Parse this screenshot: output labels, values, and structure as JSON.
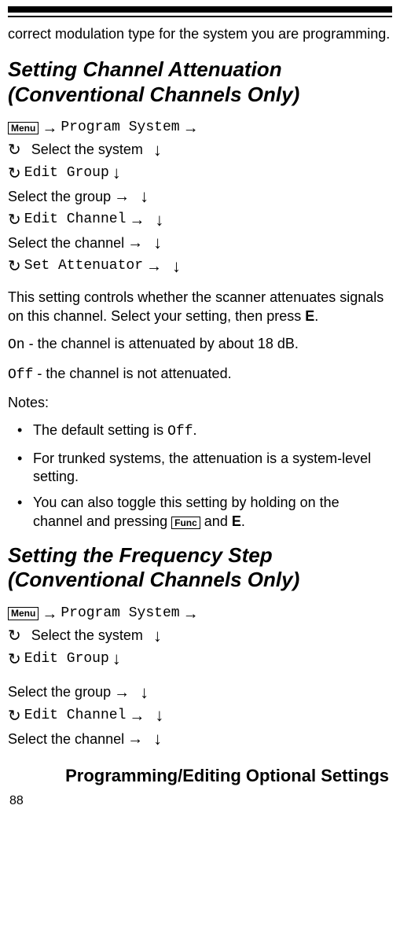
{
  "intro": "correct modulation type for the system you are programming.",
  "section1": {
    "heading": "Setting Channel Attenuation (Conventional Channels Only)",
    "nav": {
      "menu_label": "Menu",
      "program_system": "Program System",
      "select_system": "Select the system",
      "edit_group": "Edit Group",
      "select_group": "Select the group",
      "edit_channel": "Edit Channel",
      "select_channel": "Select the channel",
      "set_attenuator": "Set Attenuator"
    },
    "desc_pre": "This setting controls whether the scanner attenuates signals on this channel. Select your setting, then press ",
    "desc_bold": "E",
    "desc_post": ".",
    "on_label": "On",
    "on_text": " - the channel is attenuated by about 18 dB.",
    "off_label": "Off",
    "off_text": " - the channel is not attenuated.",
    "notes_label": "Notes:",
    "bullet1_pre": "The default setting is ",
    "bullet1_code": "Off",
    "bullet1_post": ".",
    "bullet2": "For trunked systems, the attenuation is a system-level setting.",
    "bullet3_pre": "You can also toggle this setting by holding on the channel and pressing ",
    "bullet3_func": "Func",
    "bullet3_mid": " and ",
    "bullet3_bold": "E",
    "bullet3_post": "."
  },
  "section2": {
    "heading": "Setting the Frequency Step (Conventional Channels Only)",
    "nav": {
      "menu_label": "Menu",
      "program_system": "Program System",
      "select_system": "Select the system",
      "edit_group": "Edit Group",
      "select_group": "Select the group",
      "edit_channel": "Edit Channel",
      "select_channel": "Select the channel"
    }
  },
  "footer": "Programming/Editing Optional Settings",
  "page_number": "88"
}
